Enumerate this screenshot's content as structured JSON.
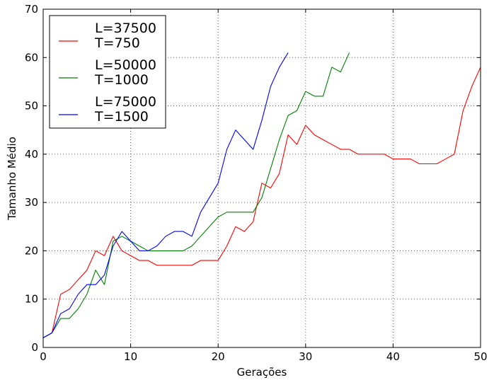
{
  "chart_data": {
    "type": "line",
    "title": "",
    "xlabel": "Gerações",
    "ylabel": "Tamanho Médio",
    "xlim": [
      0,
      50
    ],
    "ylim": [
      0,
      70
    ],
    "xticks": [
      0,
      10,
      20,
      30,
      40,
      50
    ],
    "yticks": [
      0,
      10,
      20,
      30,
      40,
      50,
      60,
      70
    ],
    "grid": true,
    "legend_position": "top-left",
    "series": [
      {
        "name_lines": [
          "L=37500",
          "T=750"
        ],
        "color": "#ff0000",
        "x": [
          0,
          1,
          2,
          3,
          4,
          5,
          6,
          7,
          8,
          9,
          10,
          11,
          12,
          13,
          14,
          15,
          16,
          17,
          18,
          19,
          20,
          21,
          22,
          23,
          24,
          25,
          26,
          27,
          28,
          29,
          30,
          31,
          32,
          33,
          34,
          35,
          36,
          37,
          38,
          39,
          40,
          41,
          42,
          43,
          44,
          45,
          46,
          47,
          48,
          49,
          50
        ],
        "y": [
          2,
          3,
          11,
          12,
          14,
          16,
          20,
          19,
          23,
          20,
          19,
          18,
          18,
          17,
          17,
          17,
          17,
          17,
          18,
          18,
          18,
          21,
          25,
          24,
          26,
          34,
          33,
          36,
          44,
          42,
          46,
          44,
          43,
          42,
          41,
          41,
          40,
          40,
          40,
          40,
          39,
          39,
          39,
          38,
          38,
          38,
          39,
          40,
          49,
          54,
          58
        ]
      },
      {
        "name_lines": [
          "L=50000",
          "T=1000"
        ],
        "color": "#008000",
        "x": [
          0,
          1,
          2,
          3,
          4,
          5,
          6,
          7,
          8,
          9,
          10,
          11,
          12,
          13,
          14,
          15,
          16,
          17,
          18,
          19,
          20,
          21,
          22,
          23,
          24,
          25,
          26,
          27,
          28,
          29,
          30,
          31,
          32,
          33,
          34,
          35
        ],
        "y": [
          2,
          3,
          6,
          6,
          8,
          11,
          16,
          13,
          22,
          23,
          22,
          21,
          20,
          20,
          20,
          20,
          20,
          21,
          23,
          25,
          27,
          28,
          28,
          28,
          28,
          31,
          37,
          43,
          48,
          49,
          53,
          52,
          52,
          58,
          57,
          61
        ]
      },
      {
        "name_lines": [
          "L=75000",
          "T=1500"
        ],
        "color": "#0000ff",
        "x": [
          0,
          1,
          2,
          3,
          4,
          5,
          6,
          7,
          8,
          9,
          10,
          11,
          12,
          13,
          14,
          15,
          16,
          17,
          18,
          19,
          20,
          21,
          22,
          23,
          24,
          25,
          26,
          27,
          28
        ],
        "y": [
          2,
          3,
          7,
          8,
          11,
          13,
          13,
          15,
          21,
          24,
          22,
          20,
          20,
          21,
          23,
          24,
          24,
          23,
          28,
          31,
          34,
          41,
          45,
          43,
          41,
          47,
          54,
          58,
          61
        ]
      }
    ]
  }
}
